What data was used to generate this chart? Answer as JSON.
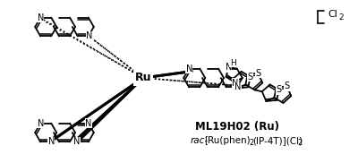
{
  "bg": "#ffffff",
  "label_bold": "ML19H02 (Ru)",
  "label_line2_italic": "rac-",
  "label_line2_normal": "[Ru(phen)",
  "label_line2_sub": "2",
  "label_line2_end": "(IP-4T)](Cl)",
  "label_line2_sub2": "2",
  "bracket_text": "Cl",
  "bracket_sub": "2",
  "fig_w": 4.0,
  "fig_h": 1.82,
  "dpi": 100
}
